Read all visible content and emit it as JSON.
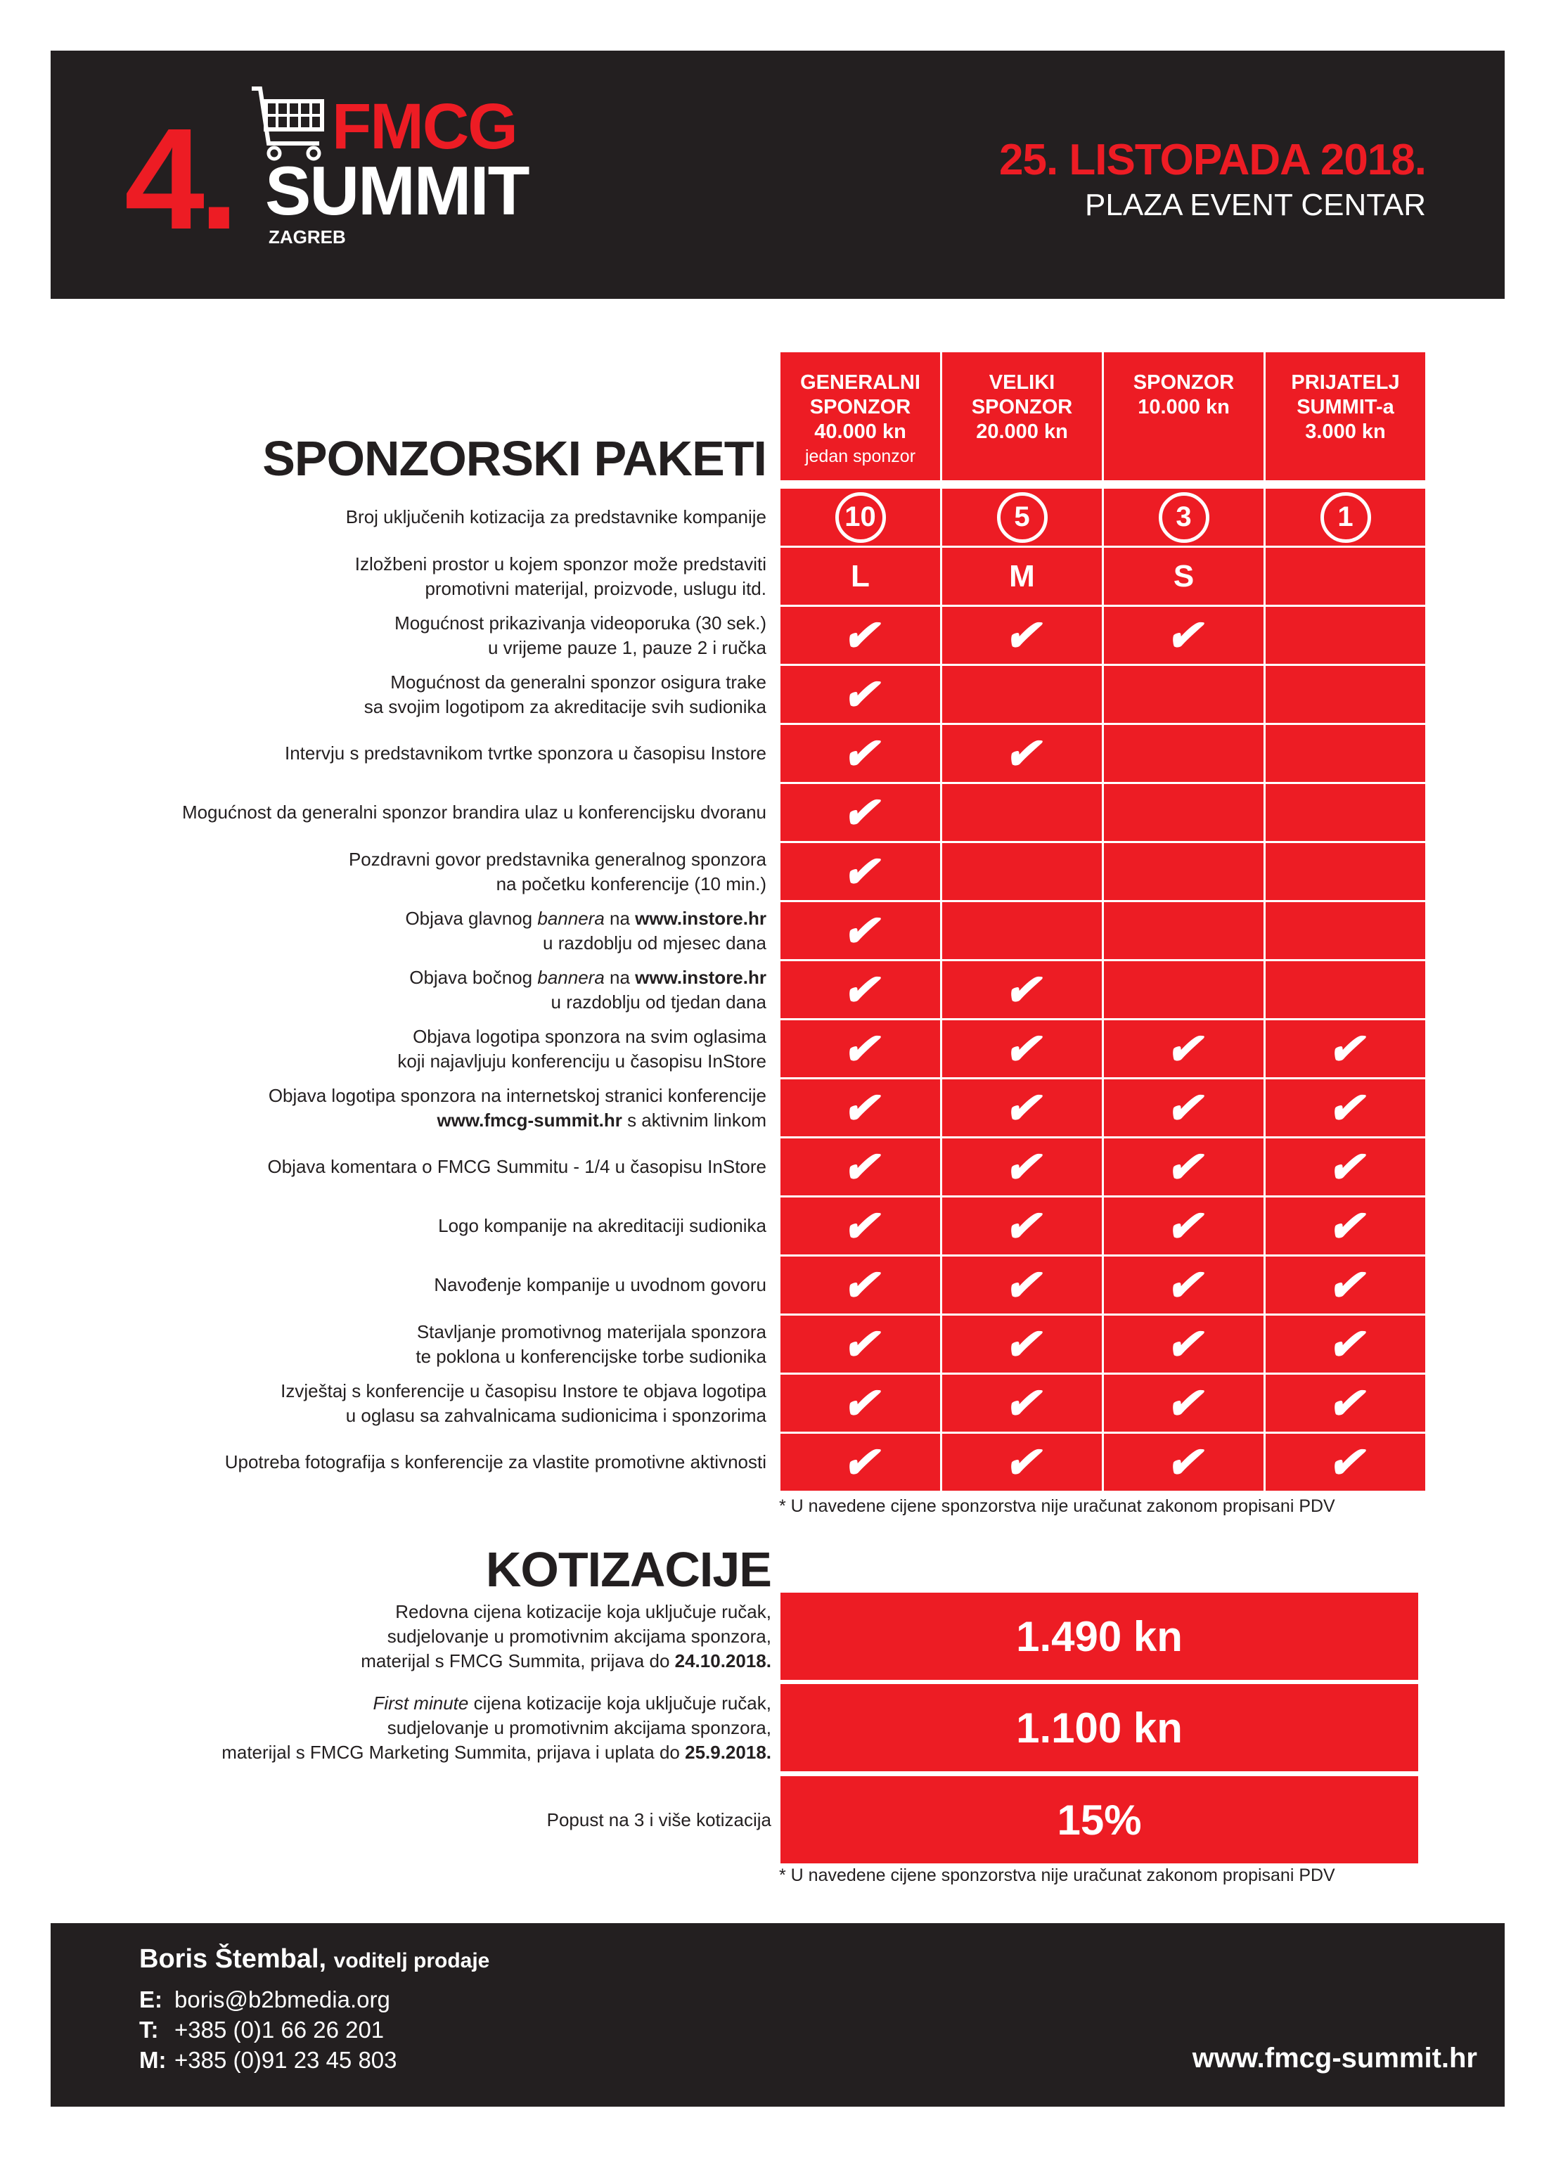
{
  "colors": {
    "accent": "#ed1c24",
    "dark": "#231f20"
  },
  "header": {
    "logo_number": "4.",
    "logo_fmcg": "FMCG",
    "logo_summit": "SUMMIT",
    "logo_city": "ZAGREB",
    "logo_icon": "shopping-cart-icon",
    "date": "25. LISTOPADA 2018.",
    "venue": "PLAZA EVENT CENTAR"
  },
  "packages": {
    "title": "SPONZORSKI PAKETI",
    "columns": [
      {
        "lines": [
          "GENERALNI",
          "SPONZOR",
          "40.000 kn"
        ],
        "sub": "jedan sponzor"
      },
      {
        "lines": [
          "VELIKI",
          "SPONZOR",
          "20.000 kn"
        ],
        "sub": ""
      },
      {
        "lines": [
          "SPONZOR",
          "10.000 kn"
        ],
        "sub": ""
      },
      {
        "lines": [
          "PRIJATELJ",
          "SUMMIT-a",
          "3.000 kn"
        ],
        "sub": ""
      }
    ],
    "rows": [
      {
        "label": [
          [
            {
              "t": "Broj uključenih kotizacija za predstavnike kompanije"
            }
          ]
        ],
        "type": "count",
        "values": [
          "10",
          "5",
          "3",
          "1"
        ]
      },
      {
        "label": [
          [
            {
              "t": "Izložbeni prostor u kojem sponzor može predstaviti"
            }
          ],
          [
            {
              "t": "promotivni materijal, proizvode, uslugu itd."
            }
          ]
        ],
        "type": "size",
        "values": [
          "L",
          "M",
          "S",
          ""
        ]
      },
      {
        "label": [
          [
            {
              "t": "Mogućnost prikazivanja videoporuka (30 sek.)"
            }
          ],
          [
            {
              "t": "u vrijeme pauze 1, pauze 2 i ručka"
            }
          ]
        ],
        "type": "check",
        "values": [
          true,
          true,
          true,
          false
        ]
      },
      {
        "label": [
          [
            {
              "t": "Mogućnost da generalni sponzor osigura trake"
            }
          ],
          [
            {
              "t": "sa svojim logotipom za akreditacije svih sudionika"
            }
          ]
        ],
        "type": "check",
        "values": [
          true,
          false,
          false,
          false
        ]
      },
      {
        "label": [
          [
            {
              "t": "Intervju s predstavnikom tvrtke sponzora u časopisu Instore"
            }
          ]
        ],
        "type": "check",
        "values": [
          true,
          true,
          false,
          false
        ]
      },
      {
        "label": [
          [
            {
              "t": "Mogućnost da generalni sponzor brandira ulaz u konferencijsku dvoranu"
            }
          ]
        ],
        "type": "check",
        "values": [
          true,
          false,
          false,
          false
        ]
      },
      {
        "label": [
          [
            {
              "t": "Pozdravni govor predstavnika generalnog sponzora"
            }
          ],
          [
            {
              "t": "na početku konferencije (10 min.)"
            }
          ]
        ],
        "type": "check",
        "values": [
          true,
          false,
          false,
          false
        ]
      },
      {
        "label": [
          [
            {
              "t": "Objava glavnog "
            },
            {
              "t": "bannera",
              "i": true
            },
            {
              "t": " na "
            },
            {
              "t": "www.instore.hr",
              "b": true
            }
          ],
          [
            {
              "t": "u razdoblju od mjesec dana"
            }
          ]
        ],
        "type": "check",
        "values": [
          true,
          false,
          false,
          false
        ]
      },
      {
        "label": [
          [
            {
              "t": "Objava bočnog "
            },
            {
              "t": "bannera",
              "i": true
            },
            {
              "t": " na "
            },
            {
              "t": "www.instore.hr",
              "b": true
            }
          ],
          [
            {
              "t": "u razdoblju od tjedan dana"
            }
          ]
        ],
        "type": "check",
        "values": [
          true,
          true,
          false,
          false
        ]
      },
      {
        "label": [
          [
            {
              "t": "Objava logotipa sponzora na svim oglasima"
            }
          ],
          [
            {
              "t": "koji najavljuju konferenciju u časopisu InStore"
            }
          ]
        ],
        "type": "check",
        "values": [
          true,
          true,
          true,
          true
        ]
      },
      {
        "label": [
          [
            {
              "t": "Objava logotipa sponzora na internetskoj stranici konferencije"
            }
          ],
          [
            {
              "t": "www.fmcg-summit.hr",
              "b": true
            },
            {
              "t": " s aktivnim linkom"
            }
          ]
        ],
        "type": "check",
        "values": [
          true,
          true,
          true,
          true
        ]
      },
      {
        "label": [
          [
            {
              "t": "Objava komentara o FMCG Summitu - 1/4 u časopisu InStore"
            }
          ]
        ],
        "type": "check",
        "values": [
          true,
          true,
          true,
          true
        ]
      },
      {
        "label": [
          [
            {
              "t": "Logo kompanije na akreditaciji sudionika"
            }
          ]
        ],
        "type": "check",
        "values": [
          true,
          true,
          true,
          true
        ]
      },
      {
        "label": [
          [
            {
              "t": "Navođenje kompanije u uvodnom govoru"
            }
          ]
        ],
        "type": "check",
        "values": [
          true,
          true,
          true,
          true
        ]
      },
      {
        "label": [
          [
            {
              "t": "Stavljanje promotivnog materijala sponzora"
            }
          ],
          [
            {
              "t": "te poklona u konferencijske torbe sudionika"
            }
          ]
        ],
        "type": "check",
        "values": [
          true,
          true,
          true,
          true
        ]
      },
      {
        "label": [
          [
            {
              "t": "Izvještaj s konferencije u časopisu Instore te objava logotipa"
            }
          ],
          [
            {
              "t": "u oglasu sa zahvalnicama sudionicima i sponzorima"
            }
          ]
        ],
        "type": "check",
        "values": [
          true,
          true,
          true,
          true
        ]
      },
      {
        "label": [
          [
            {
              "t": "Upotreba fotografija s konferencije za vlastite promotivne aktivnosti"
            }
          ]
        ],
        "type": "check",
        "values": [
          true,
          true,
          true,
          true
        ]
      }
    ],
    "check_glyph": "✔",
    "note": "* U navedene cijene sponzorstva nije uračunat zakonom propisani PDV"
  },
  "fees": {
    "title": "KOTIZACIJE",
    "items": [
      {
        "label": [
          [
            {
              "t": "Redovna cijena kotizacije koja uključuje ručak,"
            }
          ],
          [
            {
              "t": "sudjelovanje u promotivnim akcijama sponzora,"
            }
          ],
          [
            {
              "t": "materijal s FMCG Summita, prijava do "
            },
            {
              "t": "24.10.2018.",
              "b": true
            }
          ]
        ],
        "price": "1.490 kn"
      },
      {
        "label": [
          [
            {
              "t": "First minute",
              "i": true
            },
            {
              "t": " cijena kotizacije koja uključuje ručak,"
            }
          ],
          [
            {
              "t": "sudjelovanje u promotivnim akcijama sponzora,"
            }
          ],
          [
            {
              "t": "materijal s FMCG Marketing Summita, prijava i uplata do "
            },
            {
              "t": "25.9.2018.",
              "b": true
            }
          ]
        ],
        "price": "1.100 kn"
      },
      {
        "label": [
          [
            {
              "t": "Popust na 3 i više kotizacija"
            }
          ]
        ],
        "price": "15%"
      }
    ],
    "note": "* U navedene cijene sponzorstva nije uračunat zakonom propisani PDV"
  },
  "footer": {
    "name": "Boris Štembal,",
    "role": "voditelj prodaje",
    "contacts": [
      {
        "k": "E:",
        "v": "boris@b2bmedia.org"
      },
      {
        "k": "T:",
        "v": "+385 (0)1 66 26 201"
      },
      {
        "k": "M:",
        "v": "+385 (0)91 23 45 803"
      }
    ],
    "website": "www.fmcg-summit.hr"
  }
}
